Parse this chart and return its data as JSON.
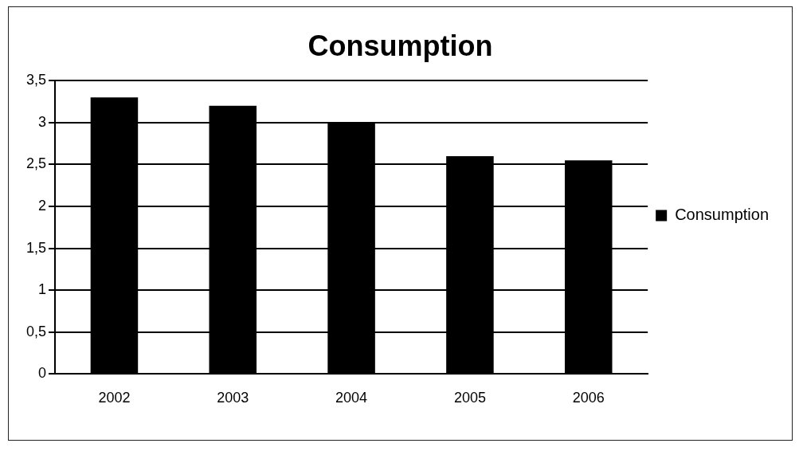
{
  "chart_data": {
    "type": "bar",
    "title": "Consumption",
    "categories": [
      "2002",
      "2003",
      "2004",
      "2005",
      "2006"
    ],
    "series": [
      {
        "name": "Consumption",
        "color": "#000000",
        "values": [
          3.3,
          3.2,
          3.0,
          2.6,
          2.55
        ]
      }
    ],
    "ylim": [
      0,
      3.5
    ],
    "yticks": [
      0,
      {
        "value": 0.5,
        "label": "0,5"
      },
      1,
      {
        "value": 1.5,
        "label": "1,5"
      },
      2,
      {
        "value": 2.5,
        "label": "2,5"
      },
      3,
      {
        "value": 3.5,
        "label": "3,5"
      }
    ],
    "grid": "y",
    "legend": "right"
  }
}
